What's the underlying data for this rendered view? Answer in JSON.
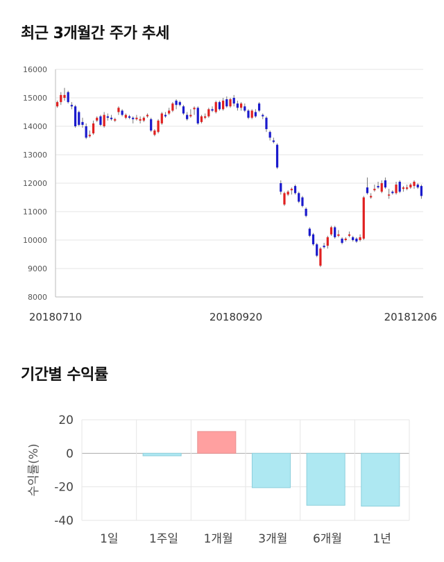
{
  "headings": {
    "trend": "최근 3개월간 주가 추세",
    "returns": "기간별 수익률"
  },
  "colors": {
    "up": "#e02020",
    "down": "#1a1acc",
    "pos_bar": "#ffa0a0",
    "neg_bar": "#aee8f2"
  },
  "chart_data": [
    {
      "type": "candlestick",
      "title": "최근 3개월간 주가 추세",
      "ylim": [
        8000,
        16000
      ],
      "yticks": [
        8000,
        9000,
        10000,
        11000,
        12000,
        13000,
        14000,
        15000,
        16000
      ],
      "xtick_labels": [
        "20180710",
        "20180920",
        "20181206"
      ],
      "grid": true,
      "candles": [
        [
          14700,
          14850,
          14900,
          14650
        ],
        [
          14850,
          15100,
          15200,
          14750
        ],
        [
          15000,
          15100,
          15350,
          14900
        ],
        [
          15200,
          14850,
          15250,
          14800
        ],
        [
          14750,
          14700,
          14850,
          14600
        ],
        [
          14700,
          14000,
          14750,
          13950
        ],
        [
          14500,
          14050,
          14550,
          14000
        ],
        [
          14150,
          14050,
          14300,
          13950
        ],
        [
          14000,
          13600,
          14100,
          13550
        ],
        [
          13650,
          13700,
          13850,
          13600
        ],
        [
          13750,
          14100,
          14200,
          13700
        ],
        [
          14200,
          14300,
          14350,
          14150
        ],
        [
          14350,
          14050,
          14400,
          14000
        ],
        [
          14000,
          14400,
          14500,
          13950
        ],
        [
          14350,
          14300,
          14450,
          14200
        ],
        [
          14300,
          14250,
          14400,
          14200
        ],
        [
          14200,
          14250,
          14300,
          14150
        ],
        [
          14500,
          14650,
          14700,
          14400
        ],
        [
          14550,
          14400,
          14600,
          14350
        ],
        [
          14300,
          14400,
          14450,
          14250
        ],
        [
          14350,
          14300,
          14400,
          14250
        ],
        [
          14300,
          14250,
          14350,
          14100
        ],
        [
          14250,
          14300,
          14400,
          14200
        ],
        [
          14200,
          14250,
          14350,
          14100
        ],
        [
          14200,
          14300,
          14350,
          14150
        ],
        [
          14350,
          14400,
          14450,
          14300
        ],
        [
          14250,
          13850,
          14300,
          13800
        ],
        [
          13700,
          13850,
          13900,
          13650
        ],
        [
          13800,
          14200,
          14250,
          13750
        ],
        [
          14100,
          14450,
          14500,
          14050
        ],
        [
          14400,
          14350,
          14500,
          14300
        ],
        [
          14450,
          14550,
          14650,
          14400
        ],
        [
          14550,
          14800,
          14850,
          14500
        ],
        [
          14900,
          14750,
          14950,
          14600
        ],
        [
          14850,
          14750,
          14900,
          14700
        ],
        [
          14700,
          14450,
          14750,
          14400
        ],
        [
          14400,
          14250,
          14500,
          14200
        ],
        [
          14350,
          14400,
          14600,
          14300
        ],
        [
          14600,
          14650,
          14700,
          14400
        ],
        [
          14650,
          14100,
          14700,
          14050
        ],
        [
          14150,
          14350,
          14400,
          14100
        ],
        [
          14300,
          14350,
          14450,
          14250
        ],
        [
          14350,
          14600,
          14650,
          14300
        ],
        [
          14600,
          14550,
          14700,
          14500
        ],
        [
          14500,
          14850,
          14900,
          14450
        ],
        [
          14850,
          14600,
          14900,
          14550
        ],
        [
          14600,
          14900,
          15000,
          14550
        ],
        [
          14950,
          14700,
          15050,
          14650
        ],
        [
          14700,
          14950,
          15000,
          14650
        ],
        [
          15000,
          14800,
          15100,
          14700
        ],
        [
          14800,
          14650,
          14900,
          14550
        ],
        [
          14650,
          14800,
          14850,
          14550
        ],
        [
          14700,
          14550,
          14800,
          14500
        ],
        [
          14550,
          14300,
          14600,
          14250
        ],
        [
          14300,
          14550,
          14600,
          14250
        ],
        [
          14500,
          14350,
          14600,
          14300
        ],
        [
          14800,
          14550,
          14850,
          14500
        ],
        [
          14400,
          14350,
          14450,
          14250
        ],
        [
          14300,
          13900,
          14350,
          13800
        ],
        [
          13800,
          13600,
          13850,
          13500
        ],
        [
          13500,
          13450,
          13600,
          13400
        ],
        [
          13350,
          12550,
          13400,
          12500
        ],
        [
          12000,
          11700,
          12100,
          11600
        ],
        [
          11250,
          11650,
          11700,
          11200
        ],
        [
          11600,
          11700,
          11750,
          11550
        ],
        [
          11750,
          11800,
          11850,
          11600
        ],
        [
          11900,
          11650,
          11950,
          11600
        ],
        [
          11650,
          11350,
          11700,
          11300
        ],
        [
          11500,
          11200,
          11550,
          11150
        ],
        [
          11100,
          10850,
          11150,
          10800
        ],
        [
          10400,
          10150,
          10450,
          10100
        ],
        [
          10200,
          9850,
          10250,
          9800
        ],
        [
          9850,
          9450,
          9900,
          9400
        ],
        [
          9100,
          9700,
          9750,
          9050
        ],
        [
          9800,
          9750,
          9900,
          9700
        ],
        [
          9800,
          10100,
          10150,
          9700
        ],
        [
          10200,
          10450,
          10500,
          10150
        ],
        [
          10450,
          10100,
          10500,
          10050
        ],
        [
          10150,
          10200,
          10350,
          10100
        ],
        [
          10050,
          9900,
          10100,
          9850
        ],
        [
          10000,
          10050,
          10100,
          9950
        ],
        [
          10150,
          10200,
          10300,
          10100
        ],
        [
          10100,
          10000,
          10150,
          9950
        ],
        [
          10050,
          9950,
          10100,
          9900
        ],
        [
          10000,
          10100,
          10200,
          9950
        ],
        [
          10050,
          11500,
          11550,
          10000
        ],
        [
          11850,
          11650,
          12200,
          11600
        ],
        [
          11500,
          11550,
          11650,
          11450
        ],
        [
          11750,
          11800,
          11950,
          11700
        ],
        [
          11900,
          11850,
          12050,
          11800
        ],
        [
          11700,
          12000,
          12100,
          11650
        ],
        [
          12100,
          11850,
          12200,
          11800
        ],
        [
          11600,
          11600,
          11800,
          11450
        ],
        [
          11700,
          11650,
          11750,
          11600
        ],
        [
          11650,
          11950,
          12050,
          11600
        ],
        [
          12050,
          11700,
          12100,
          11650
        ],
        [
          11800,
          11850,
          11900,
          11700
        ],
        [
          11800,
          11850,
          11950,
          11750
        ],
        [
          11850,
          11950,
          12000,
          11800
        ],
        [
          11900,
          12050,
          12100,
          11800
        ],
        [
          11950,
          11850,
          12000,
          11800
        ],
        [
          11900,
          11550,
          11950,
          11450
        ]
      ]
    },
    {
      "type": "bar",
      "title": "기간별 수익률",
      "ylabel": "수익률(%)",
      "categories": [
        "1일",
        "1주일",
        "1개월",
        "3개월",
        "6개월",
        "1년"
      ],
      "values": [
        0,
        -1.5,
        13,
        -20.5,
        -31,
        -31.5
      ],
      "ylim": [
        -40,
        20
      ],
      "yticks": [
        -40,
        -20,
        0,
        20
      ],
      "grid": true
    }
  ]
}
